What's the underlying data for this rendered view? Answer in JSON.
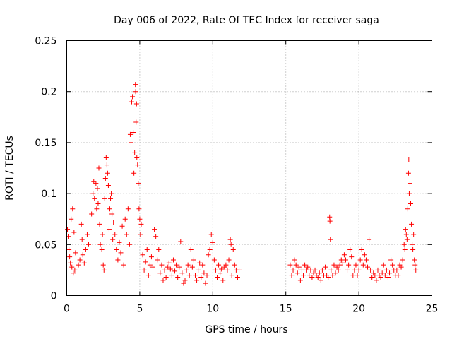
{
  "chart_data": {
    "type": "scatter",
    "title": "Day 006 of 2022, Rate Of TEC Index for receiver saga",
    "xlabel": "GPS time / hours",
    "ylabel": "ROTI / TECUs",
    "xlim": [
      0,
      25
    ],
    "ylim": [
      0,
      0.25
    ],
    "x_ticks": [
      0,
      5,
      10,
      15,
      20,
      25
    ],
    "x_tick_labels": [
      "0",
      "5",
      "10",
      "15",
      "20",
      "25"
    ],
    "y_ticks": [
      0,
      0.05,
      0.1,
      0.15,
      0.2,
      0.25
    ],
    "y_tick_labels": [
      "0",
      "0.05",
      "0.1",
      "0.15",
      "0.2",
      "0.25"
    ],
    "grid": true,
    "marker": "+",
    "color": "#ff0000",
    "series": [
      {
        "name": "ROTI",
        "points": [
          [
            0.05,
            0.065
          ],
          [
            0.1,
            0.058
          ],
          [
            0.15,
            0.045
          ],
          [
            0.2,
            0.038
          ],
          [
            0.25,
            0.032
          ],
          [
            0.3,
            0.075
          ],
          [
            0.35,
            0.028
          ],
          [
            0.4,
            0.085
          ],
          [
            0.45,
            0.022
          ],
          [
            0.5,
            0.062
          ],
          [
            0.55,
            0.025
          ],
          [
            0.6,
            0.042
          ],
          [
            0.8,
            0.03
          ],
          [
            0.9,
            0.035
          ],
          [
            1.0,
            0.07
          ],
          [
            1.05,
            0.055
          ],
          [
            1.1,
            0.04
          ],
          [
            1.2,
            0.032
          ],
          [
            1.3,
            0.045
          ],
          [
            1.4,
            0.06
          ],
          [
            1.5,
            0.05
          ],
          [
            1.7,
            0.08
          ],
          [
            1.8,
            0.1
          ],
          [
            1.85,
            0.112
          ],
          [
            1.9,
            0.095
          ],
          [
            2.0,
            0.11
          ],
          [
            2.05,
            0.085
          ],
          [
            2.1,
            0.105
          ],
          [
            2.15,
            0.09
          ],
          [
            2.2,
            0.125
          ],
          [
            2.25,
            0.07
          ],
          [
            2.3,
            0.05
          ],
          [
            2.4,
            0.045
          ],
          [
            2.45,
            0.06
          ],
          [
            2.5,
            0.03
          ],
          [
            2.55,
            0.025
          ],
          [
            2.6,
            0.095
          ],
          [
            2.65,
            0.115
          ],
          [
            2.7,
            0.135
          ],
          [
            2.75,
            0.128
          ],
          [
            2.8,
            0.12
          ],
          [
            2.85,
            0.108
          ],
          [
            2.9,
            0.065
          ],
          [
            2.95,
            0.085
          ],
          [
            3.0,
            0.095
          ],
          [
            3.05,
            0.1
          ],
          [
            3.1,
            0.08
          ],
          [
            3.15,
            0.055
          ],
          [
            3.2,
            0.072
          ],
          [
            3.3,
            0.06
          ],
          [
            3.4,
            0.045
          ],
          [
            3.5,
            0.035
          ],
          [
            3.6,
            0.052
          ],
          [
            3.7,
            0.042
          ],
          [
            3.8,
            0.068
          ],
          [
            3.9,
            0.03
          ],
          [
            4.0,
            0.075
          ],
          [
            4.1,
            0.06
          ],
          [
            4.2,
            0.085
          ],
          [
            4.3,
            0.05
          ],
          [
            4.35,
            0.158
          ],
          [
            4.4,
            0.15
          ],
          [
            4.45,
            0.19
          ],
          [
            4.5,
            0.195
          ],
          [
            4.55,
            0.16
          ],
          [
            4.6,
            0.12
          ],
          [
            4.65,
            0.14
          ],
          [
            4.7,
            0.207
          ],
          [
            4.72,
            0.2
          ],
          [
            4.75,
            0.17
          ],
          [
            4.78,
            0.188
          ],
          [
            4.8,
            0.135
          ],
          [
            4.85,
            0.128
          ],
          [
            4.9,
            0.11
          ],
          [
            4.95,
            0.085
          ],
          [
            5.0,
            0.075
          ],
          [
            5.05,
            0.06
          ],
          [
            5.1,
            0.07
          ],
          [
            5.2,
            0.04
          ],
          [
            5.3,
            0.025
          ],
          [
            5.4,
            0.033
          ],
          [
            5.5,
            0.045
          ],
          [
            5.6,
            0.02
          ],
          [
            5.7,
            0.03
          ],
          [
            5.8,
            0.038
          ],
          [
            5.9,
            0.028
          ],
          [
            6.0,
            0.065
          ],
          [
            6.1,
            0.058
          ],
          [
            6.2,
            0.035
          ],
          [
            6.3,
            0.045
          ],
          [
            6.4,
            0.022
          ],
          [
            6.5,
            0.03
          ],
          [
            6.6,
            0.015
          ],
          [
            6.7,
            0.025
          ],
          [
            6.8,
            0.018
          ],
          [
            6.9,
            0.028
          ],
          [
            7.0,
            0.032
          ],
          [
            7.1,
            0.026
          ],
          [
            7.2,
            0.02
          ],
          [
            7.3,
            0.035
          ],
          [
            7.4,
            0.024
          ],
          [
            7.5,
            0.03
          ],
          [
            7.6,
            0.018
          ],
          [
            7.7,
            0.028
          ],
          [
            7.8,
            0.053
          ],
          [
            7.9,
            0.022
          ],
          [
            8.0,
            0.012
          ],
          [
            8.1,
            0.015
          ],
          [
            8.2,
            0.025
          ],
          [
            8.3,
            0.03
          ],
          [
            8.4,
            0.02
          ],
          [
            8.5,
            0.045
          ],
          [
            8.6,
            0.028
          ],
          [
            8.7,
            0.035
          ],
          [
            8.8,
            0.02
          ],
          [
            8.9,
            0.015
          ],
          [
            9.0,
            0.025
          ],
          [
            9.1,
            0.032
          ],
          [
            9.2,
            0.018
          ],
          [
            9.3,
            0.03
          ],
          [
            9.4,
            0.022
          ],
          [
            9.5,
            0.012
          ],
          [
            9.6,
            0.02
          ],
          [
            9.7,
            0.04
          ],
          [
            9.8,
            0.045
          ],
          [
            9.9,
            0.06
          ],
          [
            10.0,
            0.052
          ],
          [
            10.1,
            0.035
          ],
          [
            10.2,
            0.025
          ],
          [
            10.3,
            0.018
          ],
          [
            10.4,
            0.03
          ],
          [
            10.5,
            0.022
          ],
          [
            10.6,
            0.026
          ],
          [
            10.7,
            0.015
          ],
          [
            10.8,
            0.028
          ],
          [
            10.9,
            0.03
          ],
          [
            11.0,
            0.025
          ],
          [
            11.1,
            0.035
          ],
          [
            11.2,
            0.055
          ],
          [
            11.25,
            0.05
          ],
          [
            11.3,
            0.02
          ],
          [
            11.4,
            0.045
          ],
          [
            11.5,
            0.03
          ],
          [
            11.6,
            0.025
          ],
          [
            11.7,
            0.018
          ],
          [
            11.8,
            0.025
          ],
          [
            15.3,
            0.03
          ],
          [
            15.4,
            0.02
          ],
          [
            15.5,
            0.025
          ],
          [
            15.6,
            0.035
          ],
          [
            15.7,
            0.03
          ],
          [
            15.8,
            0.022
          ],
          [
            15.9,
            0.028
          ],
          [
            16.0,
            0.015
          ],
          [
            16.1,
            0.025
          ],
          [
            16.2,
            0.02
          ],
          [
            16.3,
            0.03
          ],
          [
            16.4,
            0.025
          ],
          [
            16.5,
            0.028
          ],
          [
            16.6,
            0.02
          ],
          [
            16.7,
            0.025
          ],
          [
            16.8,
            0.018
          ],
          [
            16.9,
            0.022
          ],
          [
            17.0,
            0.025
          ],
          [
            17.1,
            0.02
          ],
          [
            17.2,
            0.018
          ],
          [
            17.3,
            0.022
          ],
          [
            17.4,
            0.015
          ],
          [
            17.5,
            0.025
          ],
          [
            17.6,
            0.02
          ],
          [
            17.7,
            0.028
          ],
          [
            17.8,
            0.02
          ],
          [
            17.9,
            0.018
          ],
          [
            18.0,
            0.077
          ],
          [
            18.02,
            0.073
          ],
          [
            18.05,
            0.055
          ],
          [
            18.1,
            0.025
          ],
          [
            18.2,
            0.02
          ],
          [
            18.3,
            0.03
          ],
          [
            18.4,
            0.022
          ],
          [
            18.5,
            0.028
          ],
          [
            18.6,
            0.025
          ],
          [
            18.7,
            0.03
          ],
          [
            18.8,
            0.035
          ],
          [
            18.9,
            0.032
          ],
          [
            19.0,
            0.04
          ],
          [
            19.1,
            0.035
          ],
          [
            19.2,
            0.025
          ],
          [
            19.3,
            0.03
          ],
          [
            19.4,
            0.045
          ],
          [
            19.5,
            0.038
          ],
          [
            19.6,
            0.02
          ],
          [
            19.7,
            0.025
          ],
          [
            19.8,
            0.03
          ],
          [
            19.9,
            0.02
          ],
          [
            20.0,
            0.025
          ],
          [
            20.1,
            0.035
          ],
          [
            20.2,
            0.045
          ],
          [
            20.3,
            0.03
          ],
          [
            20.4,
            0.04
          ],
          [
            20.5,
            0.035
          ],
          [
            20.6,
            0.028
          ],
          [
            20.7,
            0.055
          ],
          [
            20.8,
            0.025
          ],
          [
            20.9,
            0.018
          ],
          [
            21.0,
            0.022
          ],
          [
            21.1,
            0.02
          ],
          [
            21.2,
            0.015
          ],
          [
            21.3,
            0.025
          ],
          [
            21.4,
            0.02
          ],
          [
            21.5,
            0.018
          ],
          [
            21.6,
            0.022
          ],
          [
            21.7,
            0.03
          ],
          [
            21.8,
            0.02
          ],
          [
            21.9,
            0.025
          ],
          [
            22.0,
            0.018
          ],
          [
            22.1,
            0.022
          ],
          [
            22.2,
            0.035
          ],
          [
            22.3,
            0.03
          ],
          [
            22.4,
            0.025
          ],
          [
            22.5,
            0.02
          ],
          [
            22.6,
            0.025
          ],
          [
            22.7,
            0.02
          ],
          [
            22.8,
            0.03
          ],
          [
            22.9,
            0.028
          ],
          [
            23.0,
            0.035
          ],
          [
            23.1,
            0.05
          ],
          [
            23.15,
            0.045
          ],
          [
            23.2,
            0.065
          ],
          [
            23.25,
            0.06
          ],
          [
            23.3,
            0.055
          ],
          [
            23.35,
            0.085
          ],
          [
            23.4,
            0.12
          ],
          [
            23.42,
            0.133
          ],
          [
            23.45,
            0.1
          ],
          [
            23.5,
            0.11
          ],
          [
            23.55,
            0.09
          ],
          [
            23.6,
            0.07
          ],
          [
            23.65,
            0.05
          ],
          [
            23.7,
            0.045
          ],
          [
            23.75,
            0.06
          ],
          [
            23.8,
            0.035
          ],
          [
            23.85,
            0.03
          ],
          [
            23.9,
            0.025
          ]
        ]
      }
    ]
  }
}
